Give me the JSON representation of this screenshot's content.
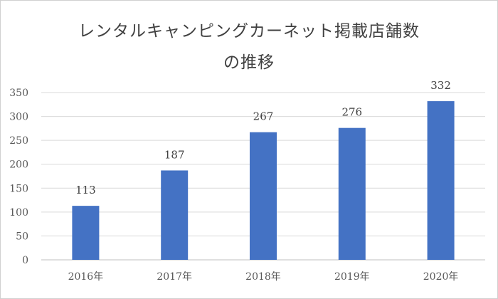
{
  "chart_data": {
    "type": "bar",
    "title_line1": "レンタルキャンピングカーネット掲載店舗数",
    "title_line2": "の推移",
    "categories": [
      "2016年",
      "2017年",
      "2018年",
      "2019年",
      "2020年"
    ],
    "values": [
      113,
      187,
      267,
      276,
      332
    ],
    "data_labels": [
      "113",
      "187",
      "267",
      "276",
      "332"
    ],
    "y_ticks": [
      "0",
      "50",
      "100",
      "150",
      "200",
      "250",
      "300",
      "350"
    ],
    "ylim": [
      0,
      350
    ],
    "grid": true,
    "legend": "none",
    "bar_color": "#4472C4"
  }
}
